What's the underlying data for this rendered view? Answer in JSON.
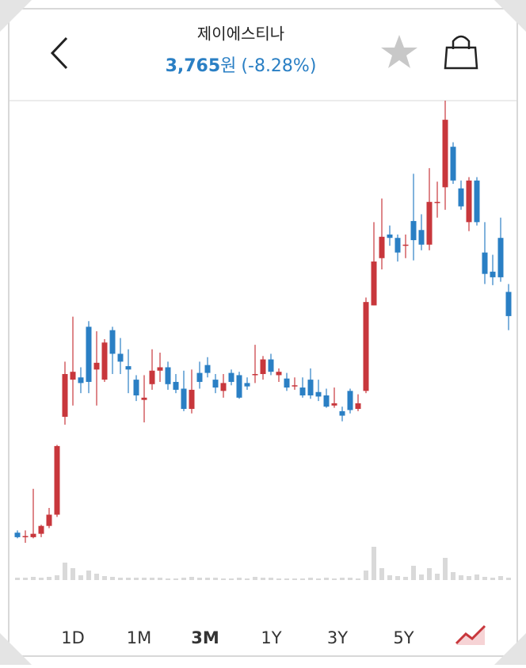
{
  "header": {
    "title": "제이에스티나",
    "price": "3,765",
    "currency": "원",
    "change": "(-8.28%)"
  },
  "chart_data": {
    "type": "candlestick",
    "up_color": "#c8373c",
    "down_color": "#2a7fc4",
    "volume_color": "#d9d9d9",
    "open": [
      1840,
      1800,
      1800,
      1830,
      1900,
      2000,
      2870,
      3200,
      3220,
      3670,
      3290,
      3200,
      3640,
      3430,
      3320,
      3200,
      3020,
      3160,
      3280,
      3310,
      3180,
      3120,
      2940,
      3260,
      3330,
      3200,
      3100,
      3260,
      3240,
      3170,
      3240,
      3250,
      3380,
      3240,
      3210,
      3140,
      3130,
      3200,
      3090,
      3060,
      2970,
      2920,
      3100,
      2940,
      3100,
      3860,
      4280,
      4490,
      4460,
      4390,
      4610,
      4530,
      4400,
      4770,
      4910,
      5270,
      4900,
      4600,
      4970,
      4330,
      4160,
      4460,
      3980
    ],
    "high": [
      1860,
      1860,
      2230,
      1910,
      2060,
      2620,
      3360,
      3760,
      3310,
      3720,
      3630,
      3560,
      3670,
      3570,
      3470,
      3240,
      3240,
      3470,
      3440,
      3360,
      3250,
      3280,
      3290,
      3360,
      3400,
      3250,
      3250,
      3290,
      3270,
      3220,
      3510,
      3410,
      3430,
      3300,
      3260,
      3220,
      3220,
      3300,
      3200,
      3120,
      3130,
      2960,
      3120,
      3070,
      3930,
      4600,
      4810,
      4570,
      4490,
      4490,
      5030,
      4670,
      5080,
      4960,
      5680,
      5310,
      4970,
      5000,
      5000,
      4600,
      4310,
      4640,
      4050
    ],
    "low": [
      1790,
      1750,
      1790,
      1800,
      1880,
      1980,
      2800,
      2970,
      3080,
      3080,
      2970,
      3180,
      3250,
      3250,
      3080,
      3010,
      2820,
      3110,
      3180,
      3110,
      3080,
      2920,
      2900,
      3120,
      3220,
      3080,
      3040,
      3150,
      3030,
      3110,
      3170,
      3200,
      3240,
      3180,
      3100,
      3110,
      3040,
      3030,
      3010,
      2950,
      2950,
      2830,
      2900,
      2920,
      3080,
      3860,
      4180,
      4390,
      4250,
      4280,
      4260,
      4350,
      4350,
      4640,
      4710,
      4940,
      4710,
      4520,
      4570,
      4050,
      4040,
      4070,
      3640
    ],
    "close": [
      1800,
      1810,
      1830,
      1900,
      2000,
      2610,
      3250,
      3270,
      3170,
      3180,
      3350,
      3530,
      3430,
      3360,
      3290,
      3060,
      3040,
      3280,
      3310,
      3160,
      3110,
      2940,
      3110,
      3180,
      3260,
      3130,
      3170,
      3180,
      3040,
      3140,
      3250,
      3380,
      3270,
      3270,
      3130,
      3150,
      3060,
      3060,
      3050,
      2960,
      2990,
      2880,
      2930,
      2990,
      3890,
      4250,
      4470,
      4460,
      4330,
      4400,
      4440,
      4400,
      4780,
      4780,
      5510,
      4970,
      4740,
      4970,
      4600,
      4140,
      4110,
      4110,
      3765
    ],
    "volume": [
      3,
      3,
      4,
      3,
      4,
      6,
      22,
      15,
      6,
      12,
      8,
      5,
      4,
      3,
      3,
      3,
      3,
      3,
      3,
      2,
      2,
      3,
      4,
      3,
      3,
      3,
      2,
      2,
      3,
      2,
      4,
      3,
      3,
      2,
      2,
      2,
      2,
      3,
      2,
      3,
      2,
      3,
      3,
      2,
      12,
      42,
      15,
      6,
      5,
      4,
      18,
      7,
      15,
      8,
      28,
      10,
      6,
      5,
      7,
      4,
      3,
      5,
      3
    ]
  },
  "tabs": [
    "1D",
    "1M",
    "3M",
    "1Y",
    "3Y",
    "5Y"
  ],
  "selected_tab": "3M"
}
